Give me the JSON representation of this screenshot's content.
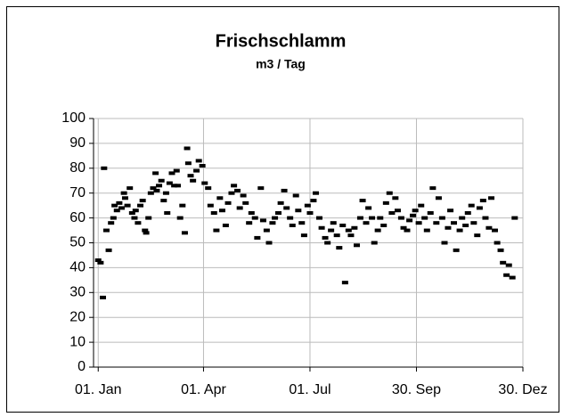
{
  "chart_data": {
    "type": "scatter",
    "title": "Frischschlamm",
    "subtitle": "m3 / Tag",
    "x": [
      1,
      3,
      5,
      6,
      8,
      10,
      12,
      14,
      15,
      17,
      19,
      21,
      23,
      24,
      26,
      28,
      30,
      32,
      33,
      35,
      37,
      39,
      41,
      42,
      44,
      46,
      48,
      50,
      51,
      53,
      55,
      57,
      59,
      60,
      62,
      64,
      66,
      68,
      69,
      71,
      73,
      75,
      77,
      78,
      80,
      82,
      85,
      87,
      90,
      92,
      95,
      97,
      100,
      102,
      105,
      107,
      110,
      112,
      115,
      117,
      120,
      122,
      125,
      127,
      130,
      132,
      135,
      137,
      140,
      142,
      145,
      147,
      150,
      152,
      155,
      157,
      160,
      162,
      165,
      167,
      170,
      172,
      175,
      177,
      180,
      182,
      185,
      187,
      190,
      192,
      195,
      197,
      200,
      202,
      205,
      207,
      210,
      212,
      215,
      217,
      220,
      222,
      225,
      227,
      230,
      232,
      235,
      237,
      240,
      242,
      245,
      247,
      250,
      252,
      255,
      257,
      260,
      262,
      265,
      267,
      270,
      272,
      275,
      277,
      280,
      282,
      285,
      287,
      290,
      292,
      295,
      297,
      300,
      302,
      305,
      307,
      310,
      312,
      315,
      317,
      320,
      322,
      325,
      327,
      330,
      332,
      335,
      337,
      340,
      342,
      345,
      347,
      350,
      352,
      355,
      357
    ],
    "values": [
      43,
      42,
      28,
      80,
      55,
      47,
      58,
      60,
      65,
      63,
      66,
      64,
      70,
      68,
      65,
      72,
      62,
      60,
      63,
      58,
      65,
      67,
      55,
      54,
      60,
      70,
      72,
      78,
      71,
      73,
      75,
      67,
      70,
      62,
      74,
      78,
      73,
      79,
      73,
      60,
      65,
      54,
      88,
      82,
      77,
      75,
      79,
      83,
      81,
      74,
      72,
      65,
      62,
      55,
      68,
      63,
      57,
      66,
      70,
      73,
      71,
      64,
      69,
      66,
      58,
      62,
      60,
      52,
      72,
      59,
      55,
      50,
      58,
      60,
      62,
      66,
      71,
      64,
      60,
      57,
      69,
      63,
      58,
      53,
      65,
      62,
      67,
      70,
      60,
      56,
      52,
      50,
      55,
      58,
      53,
      48,
      57,
      34,
      55,
      53,
      56,
      49,
      60,
      67,
      58,
      64,
      60,
      50,
      55,
      60,
      57,
      66,
      70,
      62,
      68,
      63,
      60,
      56,
      55,
      59,
      61,
      63,
      58,
      65,
      60,
      55,
      62,
      72,
      58,
      68,
      60,
      50,
      56,
      63,
      58,
      47,
      55,
      60,
      57,
      62,
      65,
      58,
      53,
      64,
      67,
      60,
      56,
      68,
      55,
      50,
      47,
      42,
      37,
      41,
      36,
      60
    ],
    "color": "#000000",
    "xlim": [
      -3,
      364
    ],
    "xticks": [
      {
        "value": 1,
        "label": "01. Jan"
      },
      {
        "value": 91,
        "label": "01. Apr"
      },
      {
        "value": 182,
        "label": "01. Jul"
      },
      {
        "value": 273,
        "label": "30. Sep"
      },
      {
        "value": 364,
        "label": "30. Dez"
      }
    ],
    "ylim": [
      0,
      100
    ],
    "yticks": [
      0,
      10,
      20,
      30,
      40,
      50,
      60,
      70,
      80,
      90,
      100
    ],
    "grid": true
  }
}
